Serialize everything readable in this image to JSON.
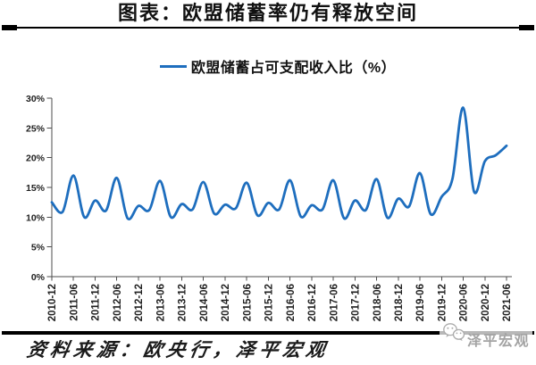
{
  "title": "图表：欧盟储蓄率仍有释放空间",
  "legend": {
    "label": "欧盟储蓄占可支配收入比（%）"
  },
  "colors": {
    "line": "#1e6ebe",
    "axis": "#4d4d4d",
    "tick_text": "#1f1f1f",
    "rule": "#000000",
    "watermark": "#a3a3a3"
  },
  "chart_data": {
    "type": "line",
    "title": "欧盟储蓄占可支配收入比（%）",
    "x_tick_labels": [
      "2010-12",
      "2011-06",
      "2011-12",
      "2012-06",
      "2012-12",
      "2013-06",
      "2013-12",
      "2014-06",
      "2014-12",
      "2015-06",
      "2015-12",
      "2016-06",
      "2016-12",
      "2017-06",
      "2017-12",
      "2018-06",
      "2018-12",
      "2019-06",
      "2019-12",
      "2020-06",
      "2020-12",
      "2021-06"
    ],
    "label_every_n_points": 2,
    "values": [
      12.5,
      10.9,
      17.0,
      10.0,
      12.8,
      11.1,
      16.6,
      9.8,
      11.9,
      11.2,
      16.1,
      10.0,
      12.2,
      11.3,
      15.9,
      10.6,
      12.1,
      11.5,
      15.8,
      10.3,
      12.4,
      11.3,
      16.2,
      10.1,
      12.0,
      11.3,
      16.2,
      9.8,
      12.8,
      11.2,
      16.4,
      9.9,
      13.1,
      11.8,
      17.4,
      10.5,
      13.4,
      16.4,
      28.4,
      14.3,
      19.4,
      20.4,
      22.0
    ],
    "ylim": [
      0,
      30
    ],
    "yticks": [
      0,
      5,
      10,
      15,
      20,
      25,
      30
    ],
    "ytick_suffix": "%",
    "grid": false,
    "smooth": true,
    "legend_position": "top"
  },
  "source_note": "资料来源：欧央行，泽平宏观",
  "watermark": {
    "icon": "wechat-icon",
    "text": "泽平宏观"
  }
}
